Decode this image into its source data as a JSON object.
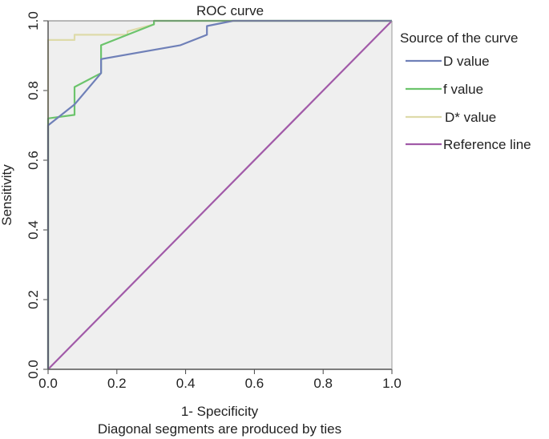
{
  "chart_data": {
    "type": "line",
    "title": "ROC curve",
    "xlabel": "1- Specificity",
    "ylabel": "Sensitivity",
    "footnote": "Diagonal segments are produced by ties",
    "xlim": [
      0,
      1
    ],
    "ylim": [
      0,
      1
    ],
    "xticks": [
      "0.0",
      "0.2",
      "0.4",
      "0.6",
      "0.8",
      "1.0"
    ],
    "yticks": [
      "0.0",
      "0.2",
      "0.4",
      "0.6",
      "0.8",
      "1.0"
    ],
    "legend_title": "Source of the curve",
    "background": "#efefef",
    "series": [
      {
        "name": "D value",
        "color": "#6f80b8",
        "x": [
          0,
          0,
          0.077,
          0.077,
          0.154,
          0.154,
          0.385,
          0.462,
          0.462,
          0.538,
          1.0
        ],
        "y": [
          0,
          0.7,
          0.76,
          0.76,
          0.85,
          0.89,
          0.93,
          0.96,
          0.985,
          1.0,
          1.0
        ]
      },
      {
        "name": "f value",
        "color": "#6cc46c",
        "x": [
          0,
          0,
          0.077,
          0.077,
          0.154,
          0.154,
          0.231,
          0.308,
          0.308,
          1.0
        ],
        "y": [
          0,
          0.72,
          0.73,
          0.81,
          0.85,
          0.93,
          0.96,
          0.99,
          1.0,
          1.0
        ]
      },
      {
        "name": "D* value",
        "color": "#dedbaa",
        "x": [
          0,
          0,
          0.077,
          0.077,
          0.231,
          0.231,
          0.308,
          0.308,
          1.0
        ],
        "y": [
          0,
          0.945,
          0.945,
          0.96,
          0.96,
          0.97,
          0.99,
          1.0,
          1.0
        ]
      },
      {
        "name": "Reference line",
        "color": "#a15aa8",
        "x": [
          0,
          1
        ],
        "y": [
          0,
          1
        ]
      }
    ]
  }
}
